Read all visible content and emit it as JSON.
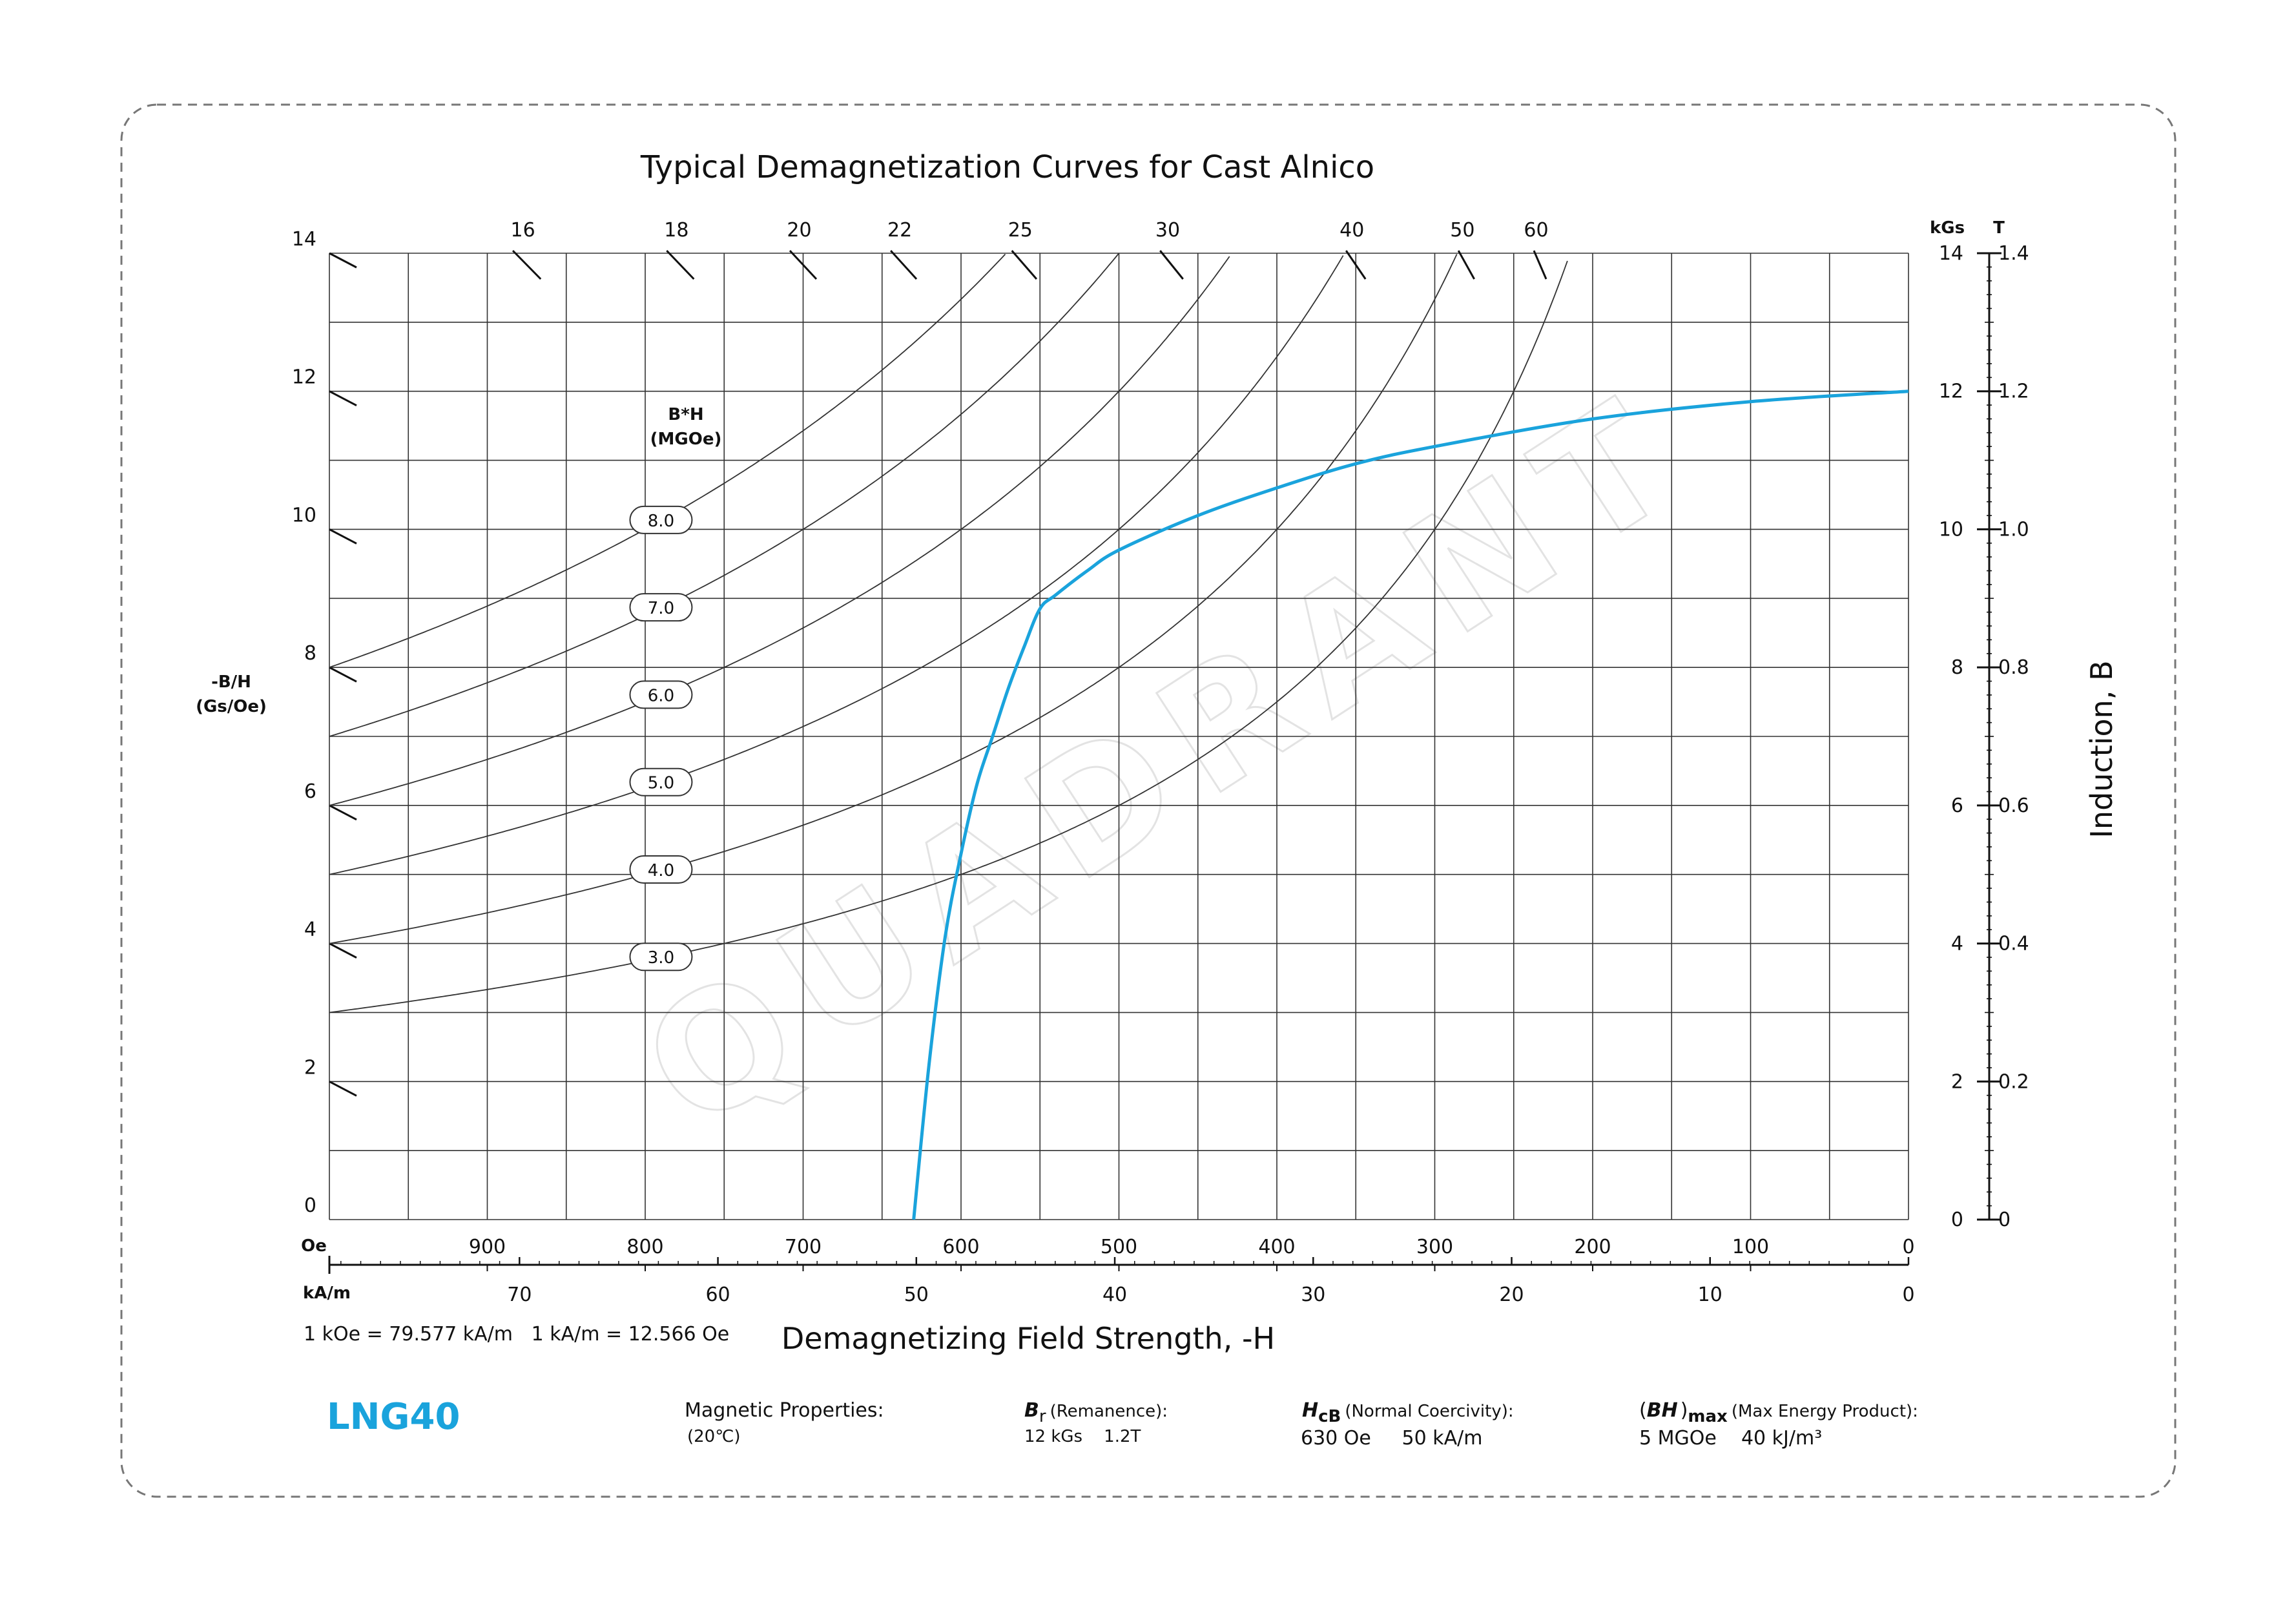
{
  "colors": {
    "curve": "#1aa3dc",
    "grade": "#1aa3dc",
    "grid": "#333333",
    "frame": "#777777"
  },
  "chart_data": {
    "type": "line",
    "title": "Typical Demagnetization Curves for Cast Alnico",
    "xlabel": "Demagnetizing Field Strength, -H",
    "ylabel": "Induction, B",
    "permeance_label": [
      "-B/H",
      "(Gs/Oe)"
    ],
    "bh_label": [
      "B*H",
      "(MGOe)"
    ],
    "x_unit_oe": "Oe",
    "x_unit_ka": "kA/m",
    "y_unit_kgs": "kGs",
    "y_unit_t": "T",
    "xlim_oe": [
      1000,
      0
    ],
    "ylim_kgs": [
      0,
      14
    ],
    "grid": true,
    "x_ticks_oe": [
      "900",
      "800",
      "700",
      "600",
      "500",
      "400",
      "300",
      "200",
      "100",
      "0"
    ],
    "x_ticks_ka": [
      "70",
      "60",
      "50",
      "40",
      "30",
      "20",
      "10",
      "0"
    ],
    "y_ticks_left": [
      "0",
      "2",
      "4",
      "6",
      "8",
      "10",
      "12",
      "14"
    ],
    "y_ticks_right_kgs": [
      "0",
      "2",
      "4",
      "6",
      "8",
      "10",
      "12",
      "14"
    ],
    "y_ticks_right_t": [
      "0",
      "0.2",
      "0.4",
      "0.6",
      "0.8",
      "1.0",
      "1.2",
      "1.4"
    ],
    "permeance_lines": [
      "2",
      "4",
      "6",
      "8",
      "10",
      "12",
      "14",
      "16",
      "18",
      "20",
      "22",
      "25",
      "30",
      "40",
      "50",
      "60"
    ],
    "energy_products": [
      "3.0",
      "4.0",
      "5.0",
      "6.0",
      "7.0",
      "8.0"
    ],
    "series": [
      {
        "x_oe": [
          0,
          100,
          200,
          300,
          350,
          400,
          450,
          500,
          520,
          540,
          550,
          560,
          570,
          580,
          590,
          600,
          610,
          620,
          630
        ],
        "b_kgs": [
          12.0,
          11.85,
          11.6,
          11.2,
          10.95,
          10.6,
          10.2,
          9.7,
          9.4,
          9.05,
          8.85,
          8.3,
          7.7,
          7.0,
          6.3,
          5.3,
          4.1,
          2.3,
          0
        ]
      }
    ]
  },
  "note": "1 kOe = 79.577 kA/m   1 kA/m = 12.566 Oe",
  "watermark": "QUADRANT",
  "footer": {
    "grade": "LNG40",
    "magnetic_properties": "Magnetic Properties:",
    "temperature": "(20℃)",
    "br_symbol": "B",
    "br_sub": "r",
    "br_label": "(Remanence):",
    "br_value": "12 kGs    1.2T",
    "hcb_symbol": "H",
    "hcb_sub": "cB",
    "hcb_label": "(Normal Coercivity):",
    "hcb_value": "630 Oe     50 kA/m",
    "bh_symbol_open": "(",
    "bh_symbol": "BH",
    "bh_symbol_close": ")",
    "bh_sub": "max",
    "bh_label": "(Max Energy Product):",
    "bh_value": "5 MGOe    40 kJ/m³"
  }
}
